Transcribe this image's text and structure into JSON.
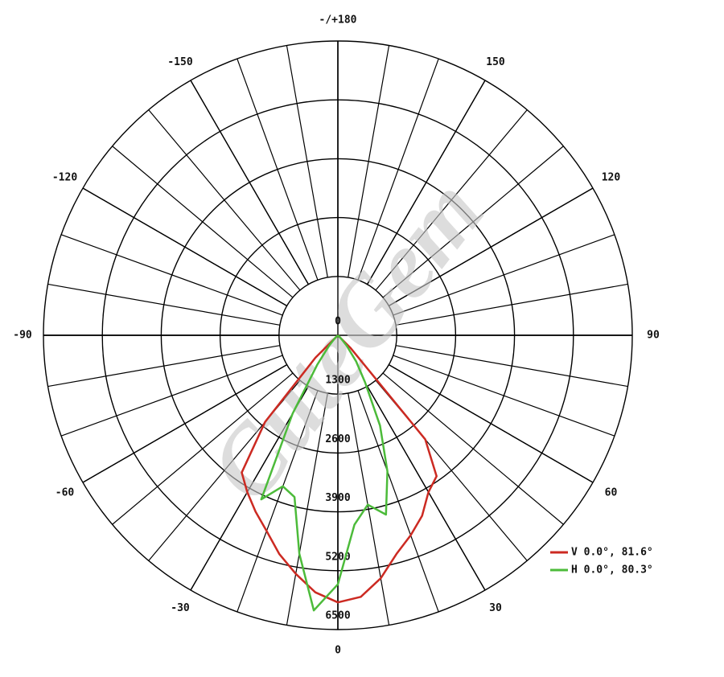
{
  "chart_data": {
    "type": "polar",
    "watermark": "CuteGem",
    "x": [
      -50,
      -45,
      -40,
      -35,
      -30,
      -25,
      -20,
      -15,
      -10,
      -5,
      0,
      5,
      10,
      15,
      20,
      25,
      30,
      35,
      40,
      45,
      50
    ],
    "series": [
      {
        "name": "V 0.0°, 81.6°",
        "color": "#cc2a22",
        "values": [
          0,
          700,
          2500,
          3700,
          4000,
          4300,
          4600,
          5000,
          5350,
          5700,
          5900,
          5800,
          5450,
          5000,
          4700,
          4400,
          4000,
          3800,
          3000,
          400,
          0
        ]
      },
      {
        "name": "H 0.0°, 80.3°",
        "color": "#4cbb3a",
        "values": [
          0,
          100,
          300,
          800,
          2000,
          4000,
          3550,
          3700,
          4900,
          6100,
          5500,
          4200,
          3800,
          4100,
          3200,
          2200,
          1200,
          700,
          300,
          100,
          0
        ]
      }
    ],
    "ylim": [
      0,
      6500
    ],
    "yticks": [
      0,
      1300,
      2600,
      3900,
      5200,
      6500
    ],
    "xticks": [
      0,
      30,
      60,
      90,
      120,
      150,
      {
        "value": 180,
        "label": "-/+180"
      },
      -150,
      -120,
      -90,
      -60,
      -30
    ],
    "legend": "lower right"
  }
}
